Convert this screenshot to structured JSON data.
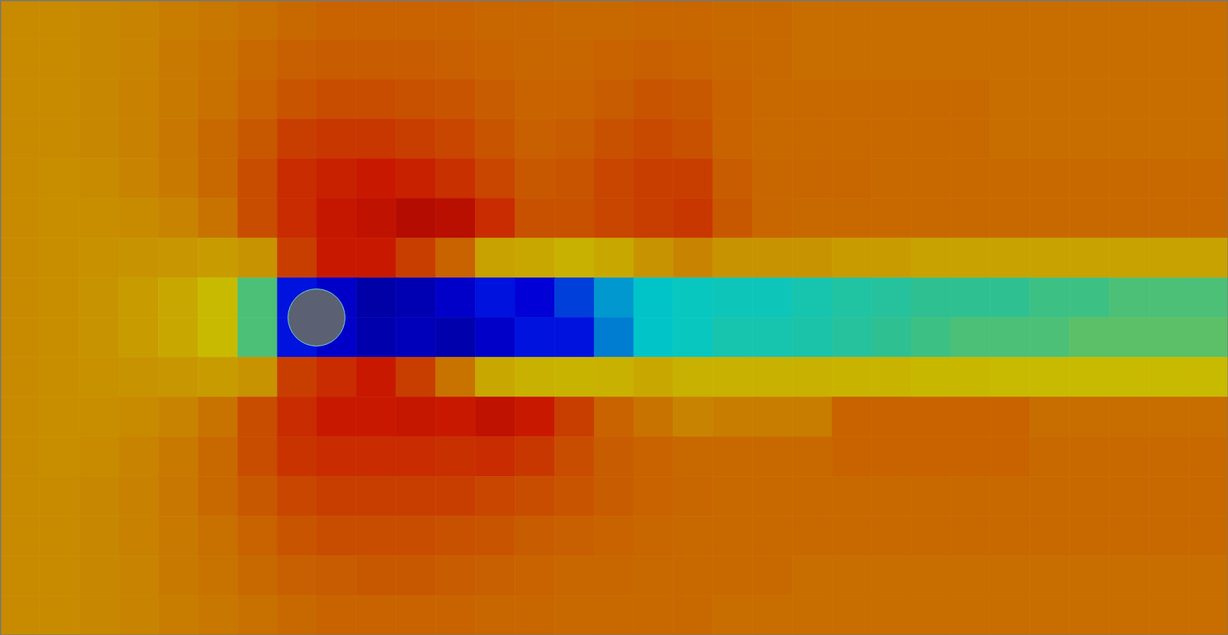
{
  "chart_data": {
    "type": "heatmap",
    "tick_labels": false,
    "grid": false,
    "xlim": [
      0,
      31
    ],
    "ylim": [
      0,
      16
    ],
    "zlim": [
      0,
      1.4
    ],
    "obstacle": {
      "x": 7.98,
      "y": 7.99,
      "r": 0.72,
      "color": "#5b6172"
    },
    "cells": [
      [
        0.88,
        0.88,
        0.89,
        0.9,
        0.92,
        0.94,
        0.96,
        0.98,
        1.0,
        1.0,
        1.0,
        1.0,
        0.99,
        0.99,
        0.98,
        0.98,
        0.99,
        0.99,
        0.98,
        0.98,
        0.97,
        0.97,
        0.97,
        0.97,
        0.97,
        0.97,
        0.97,
        0.97,
        0.97,
        0.97,
        0.97
      ],
      [
        0.88,
        0.88,
        0.89,
        0.9,
        0.93,
        0.95,
        0.98,
        1.01,
        1.02,
        1.02,
        1.02,
        1.01,
        1.0,
        0.99,
        0.99,
        1.0,
        1.01,
        1.0,
        0.99,
        0.98,
        0.97,
        0.97,
        0.97,
        0.97,
        0.97,
        0.97,
        0.97,
        0.97,
        0.97,
        0.97,
        0.97
      ],
      [
        0.88,
        0.88,
        0.89,
        0.91,
        0.93,
        0.96,
        1.0,
        1.04,
        1.06,
        1.06,
        1.05,
        1.04,
        1.02,
        1.0,
        1.0,
        1.02,
        1.04,
        1.03,
        1.0,
        0.98,
        0.98,
        0.98,
        0.98,
        0.98,
        0.98,
        0.97,
        0.97,
        0.97,
        0.97,
        0.97,
        0.97
      ],
      [
        0.88,
        0.88,
        0.89,
        0.91,
        0.94,
        0.98,
        1.03,
        1.1,
        1.12,
        1.12,
        1.1,
        1.08,
        1.04,
        1.01,
        1.02,
        1.05,
        1.07,
        1.05,
        1.0,
        0.98,
        0.98,
        0.98,
        0.98,
        0.98,
        0.98,
        0.97,
        0.97,
        0.97,
        0.97,
        0.97,
        0.97
      ],
      [
        0.88,
        0.87,
        0.88,
        0.9,
        0.93,
        0.98,
        1.06,
        1.15,
        1.18,
        1.2,
        1.18,
        1.14,
        1.08,
        1.03,
        1.04,
        1.08,
        1.1,
        1.1,
        1.02,
        0.99,
        0.99,
        0.99,
        0.98,
        0.98,
        0.98,
        0.98,
        0.98,
        0.98,
        0.98,
        0.98,
        0.98
      ],
      [
        0.88,
        0.87,
        0.87,
        0.88,
        0.9,
        0.95,
        1.06,
        1.15,
        1.22,
        1.25,
        1.3,
        1.28,
        1.15,
        1.05,
        1.05,
        1.08,
        1.1,
        1.12,
        1.03,
        0.99,
        0.98,
        0.98,
        0.98,
        0.98,
        0.98,
        0.98,
        0.98,
        0.98,
        0.98,
        0.98,
        0.98
      ],
      [
        0.88,
        0.87,
        0.86,
        0.85,
        0.84,
        0.82,
        0.85,
        1.1,
        1.2,
        1.2,
        1.1,
        1.0,
        0.8,
        0.78,
        0.75,
        0.78,
        0.85,
        0.9,
        0.85,
        0.85,
        0.85,
        0.82,
        0.82,
        0.8,
        0.8,
        0.8,
        0.8,
        0.8,
        0.8,
        0.8,
        0.8
      ],
      [
        0.88,
        0.87,
        0.85,
        0.82,
        0.78,
        0.72,
        0.62,
        0.3,
        0.2,
        0.08,
        0.12,
        0.2,
        0.3,
        0.25,
        0.35,
        0.45,
        0.5,
        0.52,
        0.53,
        0.53,
        0.55,
        0.57,
        0.58,
        0.6,
        0.6,
        0.6,
        0.61,
        0.61,
        0.62,
        0.62,
        0.62
      ],
      [
        0.88,
        0.87,
        0.85,
        0.82,
        0.78,
        0.72,
        0.62,
        0.3,
        0.2,
        0.1,
        0.15,
        0.1,
        0.2,
        0.3,
        0.3,
        0.42,
        0.5,
        0.52,
        0.55,
        0.55,
        0.56,
        0.58,
        0.6,
        0.61,
        0.62,
        0.62,
        0.62,
        0.63,
        0.63,
        0.63,
        0.63
      ],
      [
        0.88,
        0.87,
        0.86,
        0.85,
        0.84,
        0.82,
        0.85,
        1.1,
        1.15,
        1.2,
        1.1,
        0.95,
        0.78,
        0.75,
        0.74,
        0.75,
        0.78,
        0.75,
        0.75,
        0.75,
        0.75,
        0.74,
        0.74,
        0.73,
        0.73,
        0.72,
        0.72,
        0.72,
        0.72,
        0.72,
        0.72
      ],
      [
        0.88,
        0.87,
        0.87,
        0.88,
        0.9,
        0.95,
        1.06,
        1.15,
        1.2,
        1.2,
        1.22,
        1.2,
        1.25,
        1.2,
        1.1,
        1.0,
        0.95,
        0.9,
        0.92,
        0.92,
        0.92,
        1.0,
        1.0,
        1.0,
        1.0,
        1.0,
        0.97,
        0.97,
        0.97,
        0.97,
        0.97
      ],
      [
        0.88,
        0.87,
        0.88,
        0.9,
        0.93,
        0.98,
        1.06,
        1.13,
        1.15,
        1.15,
        1.15,
        1.14,
        1.15,
        1.12,
        1.06,
        1.02,
        1.0,
        0.98,
        0.98,
        0.98,
        0.98,
        1.0,
        1.0,
        1.0,
        1.0,
        1.0,
        0.98,
        0.98,
        0.98,
        0.98,
        0.98
      ],
      [
        0.88,
        0.88,
        0.89,
        0.91,
        0.94,
        0.98,
        1.03,
        1.08,
        1.1,
        1.1,
        1.1,
        1.1,
        1.08,
        1.06,
        1.04,
        1.02,
        1.0,
        0.99,
        0.98,
        0.98,
        0.98,
        0.98,
        0.98,
        0.98,
        0.98,
        0.98,
        0.98,
        0.98,
        0.98,
        0.98,
        0.98
      ],
      [
        0.88,
        0.88,
        0.89,
        0.91,
        0.93,
        0.96,
        1.0,
        1.04,
        1.06,
        1.06,
        1.06,
        1.05,
        1.04,
        1.02,
        1.01,
        1.0,
        0.99,
        0.98,
        0.98,
        0.98,
        0.98,
        0.98,
        0.98,
        0.98,
        0.98,
        0.98,
        0.98,
        0.98,
        0.98,
        0.98,
        0.98
      ],
      [
        0.88,
        0.88,
        0.89,
        0.9,
        0.93,
        0.95,
        0.98,
        1.01,
        1.02,
        1.03,
        1.03,
        1.02,
        1.01,
        1.0,
        0.99,
        0.99,
        0.98,
        0.98,
        0.98,
        0.98,
        0.97,
        0.97,
        0.97,
        0.97,
        0.97,
        0.97,
        0.97,
        0.97,
        0.97,
        0.97,
        0.97
      ],
      [
        0.88,
        0.88,
        0.89,
        0.9,
        0.92,
        0.94,
        0.96,
        0.98,
        1.0,
        1.0,
        1.0,
        1.0,
        0.99,
        0.99,
        0.98,
        0.98,
        0.98,
        0.98,
        0.97,
        0.97,
        0.97,
        0.97,
        0.97,
        0.97,
        0.97,
        0.97,
        0.97,
        0.97,
        0.97,
        0.97,
        0.97
      ]
    ]
  }
}
